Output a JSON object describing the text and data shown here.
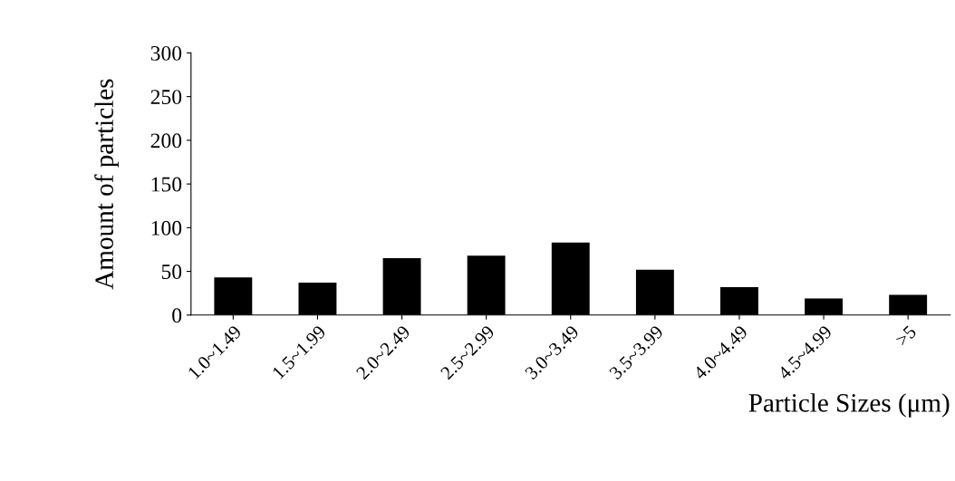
{
  "chart_data": {
    "type": "bar",
    "xlabel": "Particle Sizes (μm)",
    "ylabel": "Amount of particles",
    "categories": [
      "1.0~1.49",
      "1.5~1.99",
      "2.0~2.49",
      "2.5~2.99",
      "3.0~3.49",
      "3.5~3.99",
      "4.0~4.49",
      "4.5~4.99",
      ">5"
    ],
    "values": [
      43,
      37,
      65,
      68,
      83,
      52,
      32,
      19,
      23
    ],
    "color": "#000000",
    "ylim": [
      0,
      300
    ],
    "yticks": [
      0,
      50,
      100,
      150,
      200,
      250,
      300
    ],
    "grid": false
  }
}
